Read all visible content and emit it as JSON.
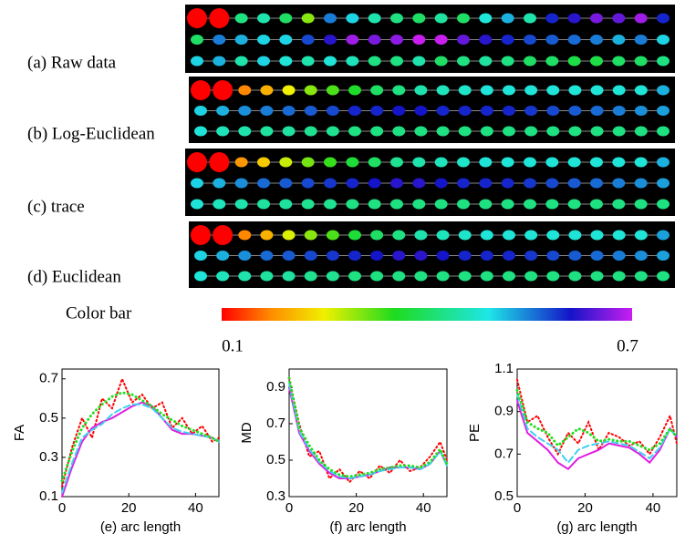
{
  "figure": {
    "panels": [
      {
        "label": "(a) Raw data",
        "rows": [
          [
            0.1,
            0.1,
            0.42,
            0.45,
            0.4,
            0.3,
            0.55,
            0.5,
            0.45,
            0.42,
            0.4,
            0.44,
            0.4,
            0.48,
            0.52,
            0.45,
            0.6,
            0.62,
            0.66,
            0.65,
            0.68,
            0.6
          ],
          [
            0.4,
            0.55,
            0.52,
            0.5,
            0.5,
            0.58,
            0.62,
            0.68,
            0.66,
            0.67,
            0.7,
            0.7,
            0.65,
            0.62,
            0.6,
            0.58,
            0.57,
            0.56,
            0.55,
            0.52,
            0.55,
            0.5
          ],
          [
            0.5,
            0.52,
            0.45,
            0.5,
            0.48,
            0.45,
            0.48,
            0.46,
            0.42,
            0.42,
            0.45,
            0.4,
            0.42,
            0.44,
            0.42,
            0.4,
            0.4,
            0.38,
            0.38,
            0.4,
            0.4,
            0.42
          ]
        ]
      },
      {
        "label": "(b) Log-Euclidean",
        "rows": [
          [
            0.1,
            0.1,
            0.17,
            0.2,
            0.25,
            0.3,
            0.33,
            0.36,
            0.4,
            0.42,
            0.45,
            0.46,
            0.47,
            0.48,
            0.48,
            0.48,
            0.48,
            0.48,
            0.48,
            0.48,
            0.48,
            0.52
          ],
          [
            0.5,
            0.52,
            0.54,
            0.55,
            0.56,
            0.57,
            0.58,
            0.6,
            0.6,
            0.61,
            0.61,
            0.6,
            0.6,
            0.6,
            0.6,
            0.59,
            0.58,
            0.57,
            0.56,
            0.55,
            0.54,
            0.53
          ],
          [
            0.48,
            0.46,
            0.45,
            0.44,
            0.44,
            0.43,
            0.43,
            0.42,
            0.42,
            0.42,
            0.42,
            0.42,
            0.42,
            0.42,
            0.42,
            0.42,
            0.42,
            0.42,
            0.42,
            0.42,
            0.42,
            0.42
          ]
        ]
      },
      {
        "label": "(c) trace",
        "rows": [
          [
            0.1,
            0.1,
            0.18,
            0.22,
            0.27,
            0.31,
            0.34,
            0.37,
            0.4,
            0.43,
            0.45,
            0.46,
            0.47,
            0.48,
            0.48,
            0.48,
            0.48,
            0.48,
            0.48,
            0.48,
            0.48,
            0.52
          ],
          [
            0.5,
            0.52,
            0.54,
            0.56,
            0.57,
            0.58,
            0.59,
            0.6,
            0.61,
            0.62,
            0.62,
            0.61,
            0.6,
            0.6,
            0.6,
            0.59,
            0.58,
            0.57,
            0.56,
            0.55,
            0.54,
            0.53
          ],
          [
            0.48,
            0.46,
            0.45,
            0.44,
            0.44,
            0.43,
            0.43,
            0.42,
            0.42,
            0.42,
            0.42,
            0.42,
            0.42,
            0.42,
            0.42,
            0.42,
            0.42,
            0.42,
            0.42,
            0.42,
            0.42,
            0.42
          ]
        ]
      },
      {
        "label": "(d) Euclidean",
        "rows": [
          [
            0.1,
            0.1,
            0.17,
            0.2,
            0.26,
            0.3,
            0.33,
            0.37,
            0.4,
            0.42,
            0.45,
            0.46,
            0.47,
            0.48,
            0.48,
            0.48,
            0.48,
            0.48,
            0.48,
            0.48,
            0.48,
            0.53
          ],
          [
            0.5,
            0.52,
            0.54,
            0.56,
            0.57,
            0.58,
            0.59,
            0.6,
            0.61,
            0.62,
            0.62,
            0.61,
            0.6,
            0.6,
            0.6,
            0.59,
            0.58,
            0.57,
            0.56,
            0.55,
            0.54,
            0.53
          ],
          [
            0.48,
            0.46,
            0.45,
            0.44,
            0.44,
            0.43,
            0.43,
            0.42,
            0.42,
            0.42,
            0.42,
            0.42,
            0.42,
            0.42,
            0.42,
            0.42,
            0.42,
            0.42,
            0.42,
            0.42,
            0.42,
            0.42
          ]
        ]
      }
    ],
    "colorbar": {
      "label": "Color bar",
      "lim": [
        0.1,
        0.7
      ],
      "ticks": [
        0.1,
        0.7
      ]
    }
  },
  "chart_data": [
    {
      "type": "line",
      "ylabel": "FA",
      "xlabel": "(e) arc length",
      "x": [
        0,
        3,
        6,
        9,
        12,
        15,
        18,
        21,
        24,
        27,
        30,
        33,
        36,
        39,
        42,
        45,
        47
      ],
      "xlim": [
        0,
        47
      ],
      "xticks": [
        0,
        20,
        40
      ],
      "ylim": [
        0.1,
        0.75
      ],
      "yticks": [
        0.1,
        0.3,
        0.5,
        0.7
      ],
      "series": [
        {
          "color": "#ff0000",
          "style": "dotted",
          "values": [
            0.15,
            0.35,
            0.5,
            0.4,
            0.6,
            0.55,
            0.7,
            0.58,
            0.62,
            0.55,
            0.58,
            0.45,
            0.5,
            0.42,
            0.46,
            0.38,
            0.4
          ]
        },
        {
          "color": "#e020e0",
          "style": "solid",
          "values": [
            0.1,
            0.25,
            0.38,
            0.45,
            0.48,
            0.5,
            0.53,
            0.56,
            0.58,
            0.56,
            0.5,
            0.44,
            0.42,
            0.42,
            0.41,
            0.4,
            0.38
          ]
        },
        {
          "color": "#40d0f0",
          "style": "dashed",
          "values": [
            0.12,
            0.27,
            0.4,
            0.44,
            0.47,
            0.52,
            0.55,
            0.57,
            0.57,
            0.55,
            0.5,
            0.45,
            0.43,
            0.42,
            0.41,
            0.4,
            0.38
          ]
        },
        {
          "color": "#20e020",
          "style": "dots",
          "values": [
            0.18,
            0.33,
            0.45,
            0.52,
            0.57,
            0.61,
            0.63,
            0.62,
            0.59,
            0.56,
            0.52,
            0.49,
            0.46,
            0.44,
            0.42,
            0.4,
            0.38
          ]
        }
      ]
    },
    {
      "type": "line",
      "ylabel": "MD",
      "xlabel": "(f) arc length",
      "x": [
        0,
        3,
        6,
        9,
        12,
        15,
        18,
        21,
        24,
        27,
        30,
        33,
        36,
        39,
        42,
        45,
        47
      ],
      "xlim": [
        0,
        47
      ],
      "xticks": [
        0,
        20,
        40
      ],
      "ylim": [
        0.3,
        1.0
      ],
      "yticks": [
        0.3,
        0.5,
        0.7,
        0.9
      ],
      "series": [
        {
          "color": "#ff0000",
          "style": "dotted",
          "values": [
            0.95,
            0.7,
            0.52,
            0.55,
            0.4,
            0.45,
            0.38,
            0.44,
            0.4,
            0.47,
            0.43,
            0.5,
            0.44,
            0.46,
            0.52,
            0.6,
            0.5
          ]
        },
        {
          "color": "#e020e0",
          "style": "solid",
          "values": [
            0.9,
            0.65,
            0.55,
            0.48,
            0.43,
            0.4,
            0.4,
            0.41,
            0.42,
            0.44,
            0.46,
            0.46,
            0.46,
            0.45,
            0.48,
            0.55,
            0.47
          ]
        },
        {
          "color": "#40d0f0",
          "style": "dashed",
          "values": [
            0.92,
            0.66,
            0.56,
            0.49,
            0.44,
            0.41,
            0.4,
            0.41,
            0.42,
            0.44,
            0.45,
            0.46,
            0.46,
            0.45,
            0.48,
            0.55,
            0.47
          ]
        },
        {
          "color": "#20e020",
          "style": "dots",
          "values": [
            0.95,
            0.68,
            0.58,
            0.5,
            0.45,
            0.42,
            0.41,
            0.42,
            0.43,
            0.45,
            0.46,
            0.47,
            0.47,
            0.46,
            0.49,
            0.56,
            0.48
          ]
        }
      ]
    },
    {
      "type": "line",
      "ylabel": "PE",
      "xlabel": "(g) arc length",
      "x": [
        0,
        3,
        6,
        9,
        12,
        15,
        18,
        21,
        24,
        27,
        30,
        33,
        36,
        39,
        42,
        45,
        47
      ],
      "xlim": [
        0,
        47
      ],
      "xticks": [
        0,
        20,
        40
      ],
      "ylim": [
        0.5,
        1.1
      ],
      "yticks": [
        0.5,
        0.7,
        0.9,
        1.1
      ],
      "series": [
        {
          "color": "#ff0000",
          "style": "dotted",
          "values": [
            1.05,
            0.85,
            0.88,
            0.78,
            0.7,
            0.8,
            0.75,
            0.85,
            0.72,
            0.8,
            0.78,
            0.74,
            0.76,
            0.7,
            0.78,
            0.88,
            0.75
          ]
        },
        {
          "color": "#e020e0",
          "style": "solid",
          "values": [
            0.95,
            0.8,
            0.76,
            0.72,
            0.66,
            0.63,
            0.68,
            0.7,
            0.72,
            0.75,
            0.74,
            0.73,
            0.7,
            0.66,
            0.72,
            0.82,
            0.78
          ]
        },
        {
          "color": "#40d0f0",
          "style": "dashed",
          "values": [
            0.98,
            0.82,
            0.78,
            0.75,
            0.72,
            0.66,
            0.72,
            0.74,
            0.75,
            0.76,
            0.75,
            0.74,
            0.71,
            0.68,
            0.73,
            0.82,
            0.78
          ]
        },
        {
          "color": "#20e020",
          "style": "dots",
          "values": [
            1.0,
            0.85,
            0.82,
            0.8,
            0.74,
            0.78,
            0.82,
            0.8,
            0.76,
            0.77,
            0.76,
            0.76,
            0.74,
            0.72,
            0.75,
            0.82,
            0.78
          ]
        }
      ]
    }
  ]
}
